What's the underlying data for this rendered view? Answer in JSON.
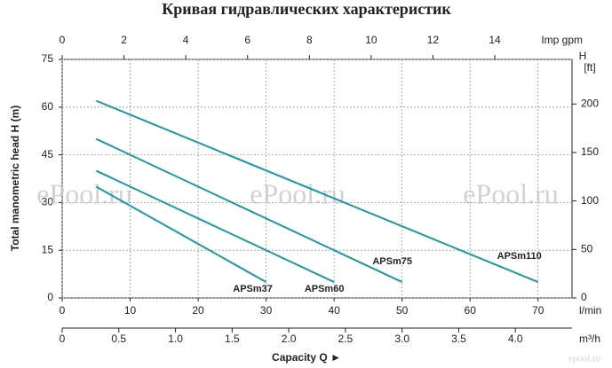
{
  "chart_data": {
    "type": "line",
    "title": "Кривая гидравлических характеристик",
    "y_label": "Total manometric head H (m)",
    "x_label": "Capacity Q  ►",
    "x_unit": "l/min",
    "xlim": [
      0,
      75
    ],
    "xticks": [
      0,
      10,
      20,
      30,
      40,
      50,
      60,
      70
    ],
    "ylim": [
      0,
      75
    ],
    "yticks": [
      0,
      15,
      30,
      45,
      60,
      75
    ],
    "grid": true,
    "top_axis": {
      "label": "Imp gpm",
      "lim": [
        0,
        16.5
      ],
      "ticks": [
        0,
        2,
        4,
        6,
        8,
        10,
        12,
        14
      ]
    },
    "bottom_axis2": {
      "label": "m³/h",
      "lim": [
        0,
        4.5
      ],
      "ticks": [
        0,
        0.5,
        {
          "value": 1,
          "label": "1.0"
        },
        1.5,
        {
          "value": 2,
          "label": "2.0"
        },
        2.5,
        {
          "value": 3,
          "label": "3.0"
        },
        3.5,
        {
          "value": 4,
          "label": "4.0"
        }
      ]
    },
    "right_axis": {
      "label_lines": [
        "H",
        "[ft]"
      ],
      "lim": [
        0,
        246
      ],
      "ticks": [
        0,
        50,
        100,
        150,
        200
      ]
    },
    "series": [
      {
        "name": "APSm37",
        "color": "#1a9aa0",
        "x": [
          5,
          30
        ],
        "values": [
          35,
          5
        ]
      },
      {
        "name": "APSm60",
        "color": "#1a9aa0",
        "x": [
          5,
          40
        ],
        "values": [
          40,
          5
        ]
      },
      {
        "name": "APSm75",
        "color": "#1a9aa0",
        "x": [
          5,
          50
        ],
        "values": [
          50,
          5
        ]
      },
      {
        "name": "APSm110",
        "color": "#1a9aa0",
        "x": [
          5,
          70
        ],
        "values": [
          62,
          5
        ]
      }
    ],
    "watermarks": [
      "ePool.ru",
      "ePool.ru",
      "ePool.ru",
      "epool.ru"
    ]
  }
}
